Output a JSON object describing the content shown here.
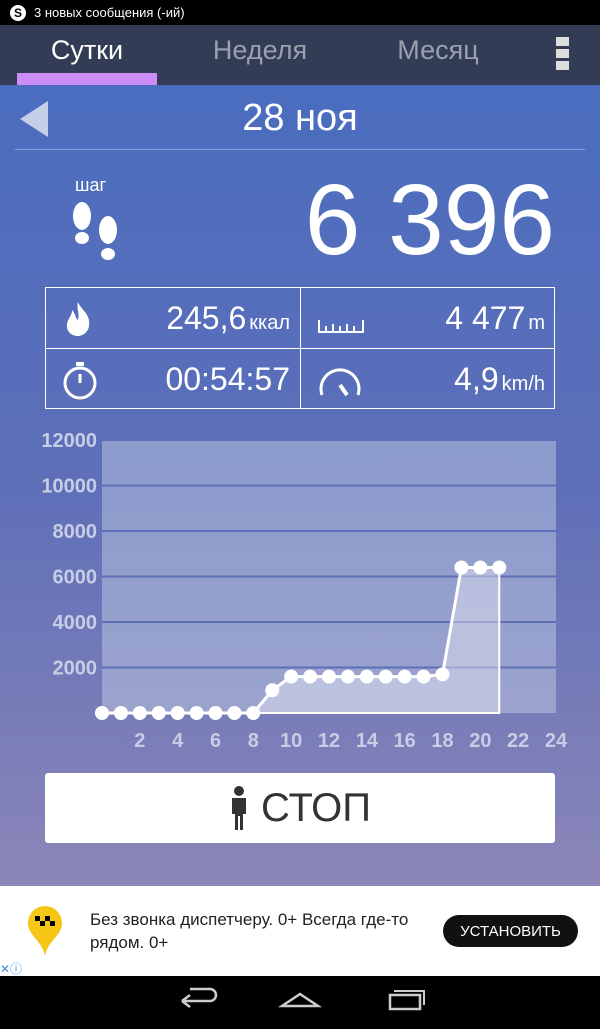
{
  "status": {
    "notification": "3 новых сообщения (-ий)",
    "app_icon": "skype-icon"
  },
  "tabs": [
    {
      "label": "Сутки",
      "active": true
    },
    {
      "label": "Неделя",
      "active": false
    },
    {
      "label": "Месяц",
      "active": false
    }
  ],
  "accent": "#cc8df7",
  "date": "28 ноя",
  "steps": {
    "label": "шаг",
    "value": "6 396"
  },
  "stats": {
    "calories": {
      "value": "245,6",
      "unit": "ккал"
    },
    "distance": {
      "value": "4 477",
      "unit": "m"
    },
    "time": {
      "value": "00:54:57"
    },
    "speed": {
      "value": "4,9",
      "unit": "km/h"
    }
  },
  "chart_data": {
    "type": "area",
    "x": [
      0,
      1,
      2,
      3,
      4,
      5,
      6,
      7,
      8,
      9,
      10,
      11,
      12,
      13,
      14,
      15,
      16,
      17,
      18,
      19,
      20,
      21
    ],
    "values": [
      0,
      0,
      0,
      0,
      0,
      0,
      0,
      0,
      0,
      1000,
      1600,
      1600,
      1600,
      1600,
      1600,
      1600,
      1600,
      1600,
      1700,
      6396,
      6396,
      6396
    ],
    "xlim": [
      0,
      24
    ],
    "ylim": [
      0,
      12000
    ],
    "xticks": [
      "2",
      "4",
      "6",
      "8",
      "10",
      "12",
      "14",
      "16",
      "18",
      "20",
      "22",
      "24"
    ],
    "yticks": [
      "2000",
      "4000",
      "6000",
      "8000",
      "10000",
      "12000"
    ],
    "grid": "horizontal"
  },
  "stop_button": "СТОП",
  "ad": {
    "text": "Без звонка диспетчеру. 0+ Всегда где-то рядом. 0+",
    "button": "УСТАНОВИТЬ"
  }
}
